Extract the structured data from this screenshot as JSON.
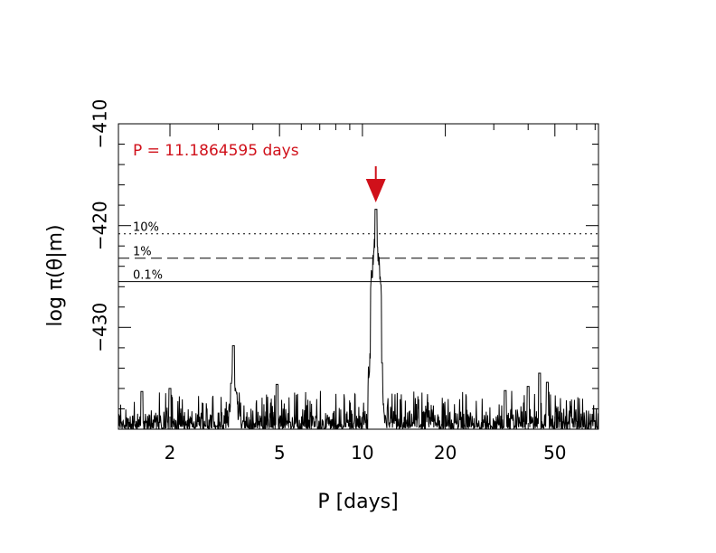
{
  "chart_data": {
    "type": "line",
    "xlabel": "P [days]",
    "ylabel": "log π(θ|m)",
    "xscale": "log",
    "xlim": [
      1.3,
      72
    ],
    "ylim": [
      -440,
      -410
    ],
    "xticks_major": [
      2,
      5,
      10,
      20,
      50
    ],
    "xtick_labels": [
      "2",
      "5",
      "10",
      "20",
      "50"
    ],
    "yticks_major": [
      -430,
      -420,
      -410
    ],
    "ytick_labels": [
      "−430",
      "−420",
      "−410"
    ],
    "grid": false,
    "annotation": {
      "text": "P = 11.1864595 days",
      "period": 11.1864595,
      "color": "#d0101a"
    },
    "arrow_color": "#d0101a",
    "thresholds": [
      {
        "label": "10%",
        "value": -420.8,
        "style": "dotted"
      },
      {
        "label": "1%",
        "value": -423.2,
        "style": "dashed"
      },
      {
        "label": "0.1%",
        "value": -425.5,
        "style": "solid"
      }
    ],
    "peaks": [
      {
        "x": 11.19,
        "y": -418.4
      },
      {
        "x": 10.97,
        "y": -427.3
      },
      {
        "x": 11.45,
        "y": -430.5
      },
      {
        "x": 11.75,
        "y": -433.5
      },
      {
        "x": 10.75,
        "y": -434.5
      },
      {
        "x": 3.4,
        "y": -431.8
      },
      {
        "x": 3.35,
        "y": -435.5
      },
      {
        "x": 4.9,
        "y": -435.6
      },
      {
        "x": 2.0,
        "y": -436.0
      },
      {
        "x": 1.58,
        "y": -436.3
      },
      {
        "x": 33.0,
        "y": -436.2
      },
      {
        "x": 44.0,
        "y": -434.5
      },
      {
        "x": 40.0,
        "y": -435.8
      },
      {
        "x": 47.0,
        "y": -435.4
      }
    ],
    "noise_floor": -438.8
  }
}
